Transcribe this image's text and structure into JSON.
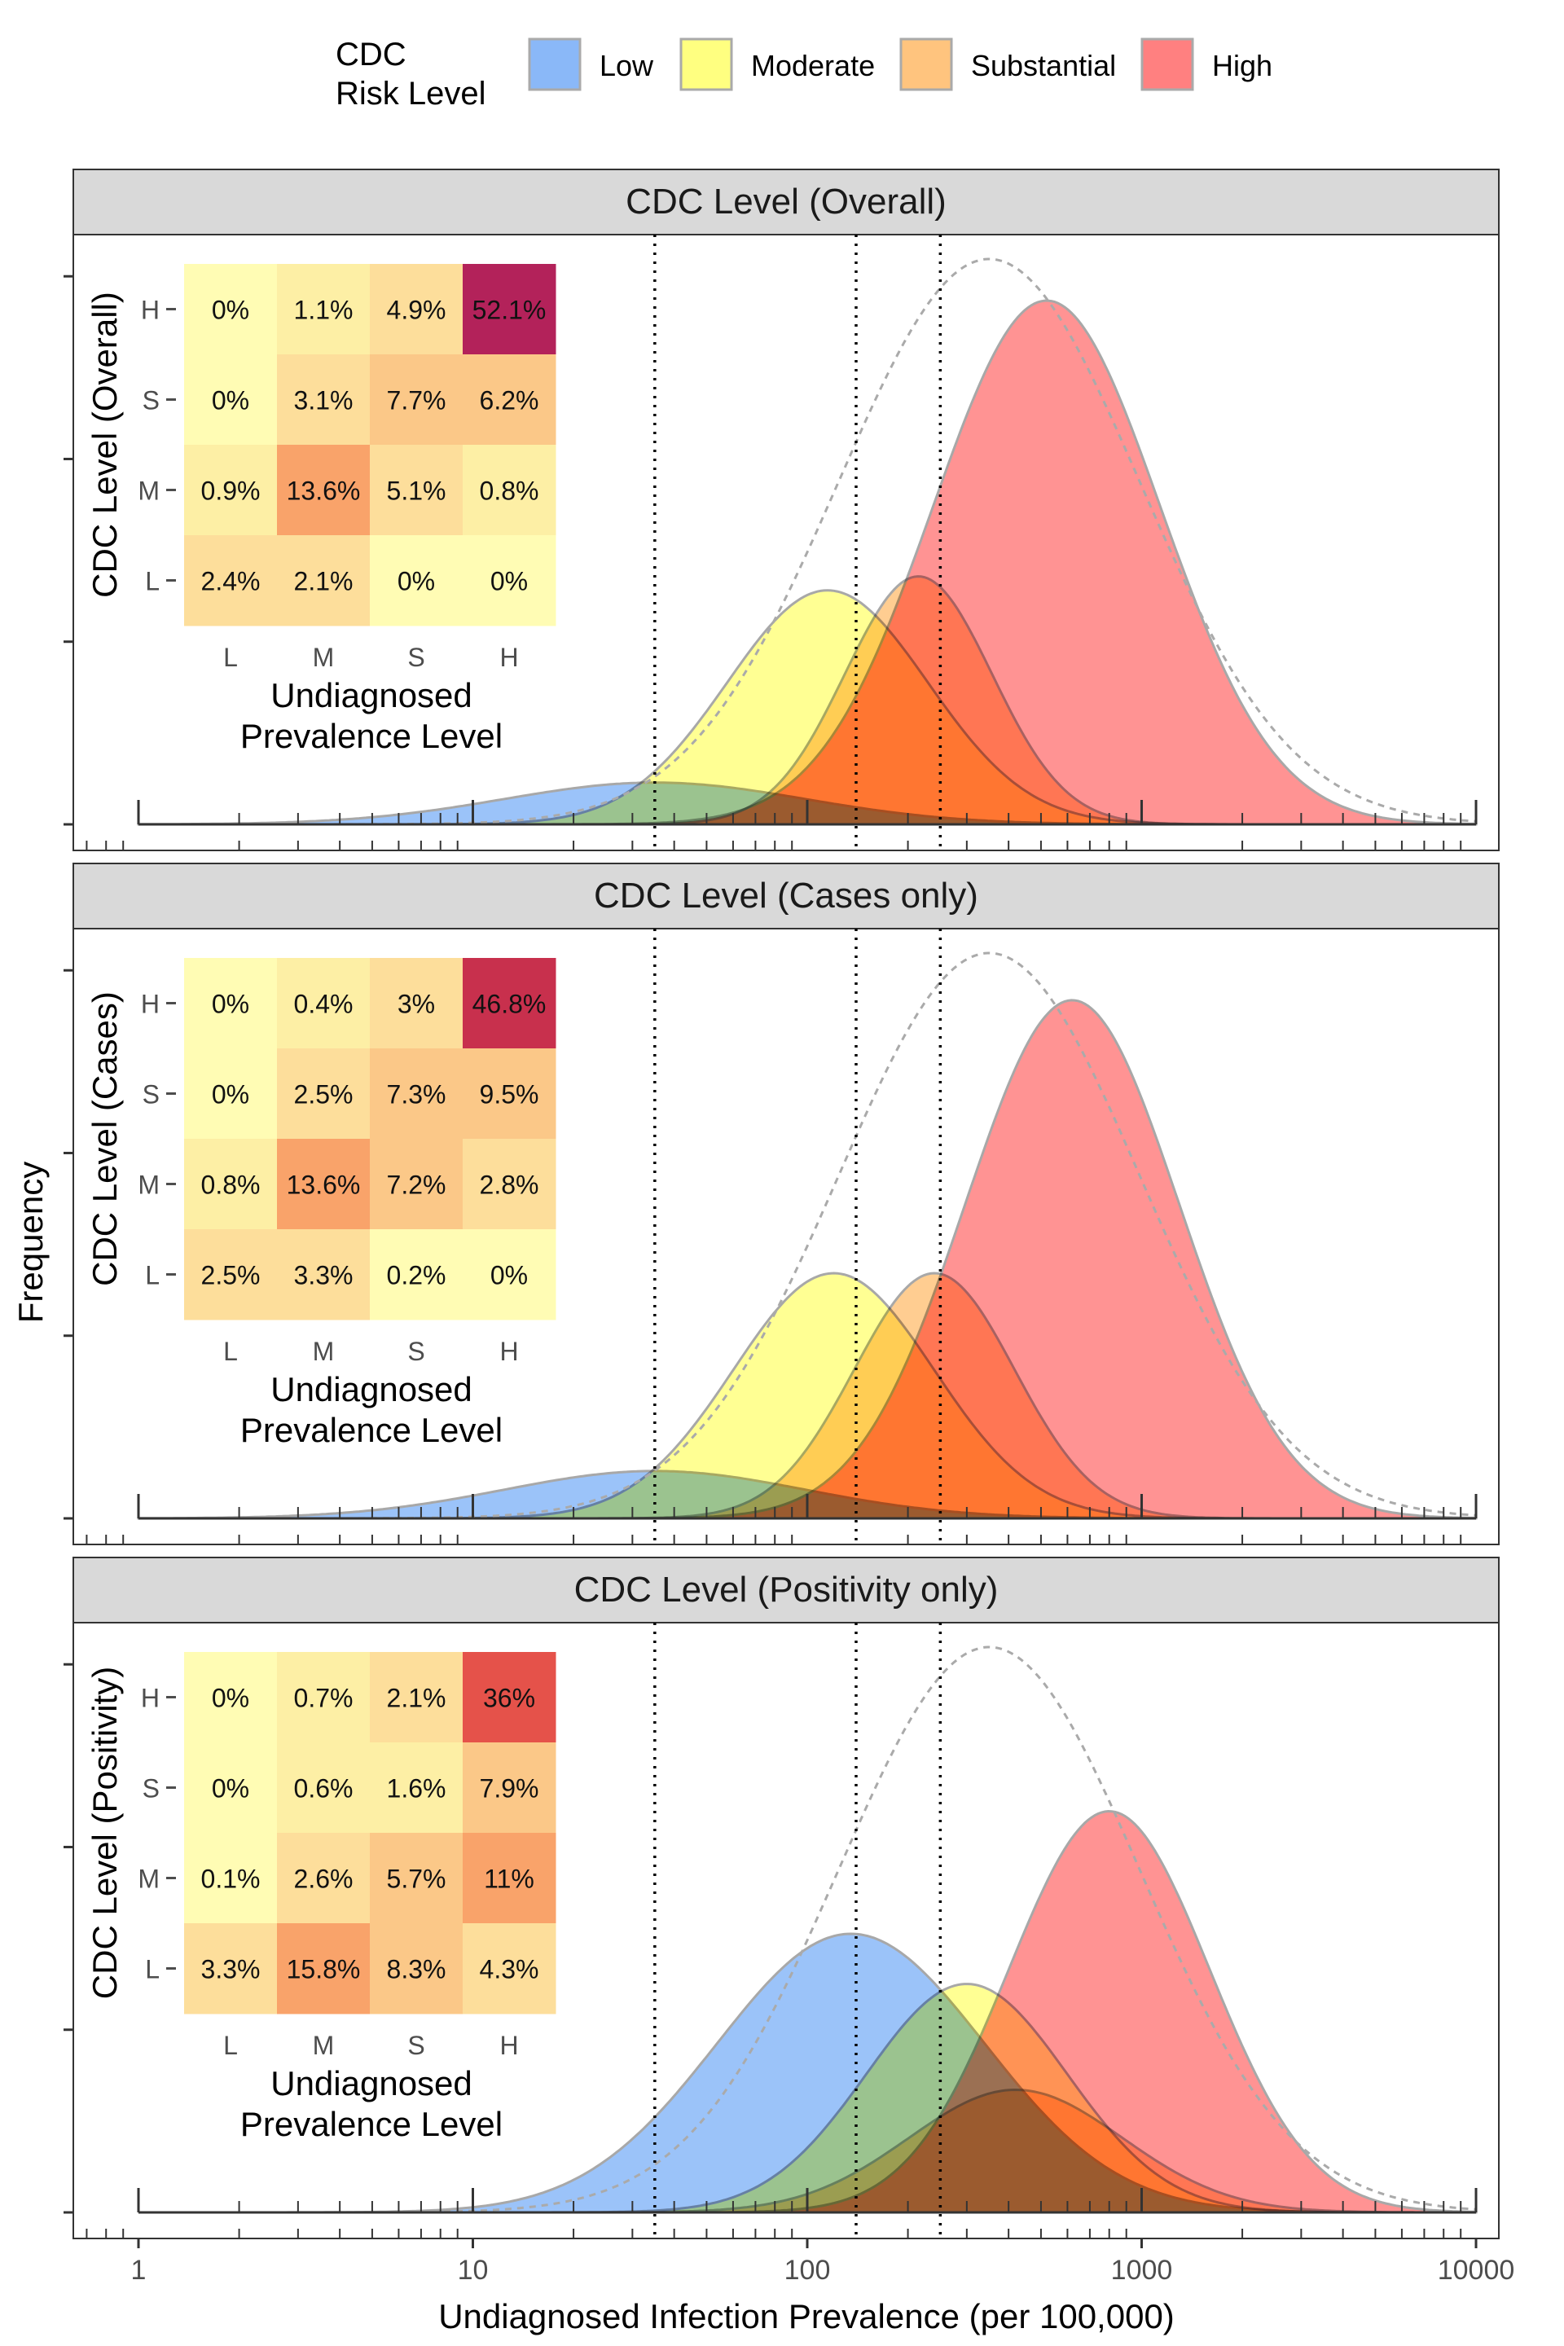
{
  "legend": {
    "title_line1": "CDC",
    "title_line2": "Risk Level",
    "items": [
      {
        "label": "Low",
        "color": "#8ab8f8"
      },
      {
        "label": "Moderate",
        "color": "#ffff80"
      },
      {
        "label": "Substantial",
        "color": "#ffc47e"
      },
      {
        "label": "High",
        "color": "#ff8080"
      }
    ]
  },
  "ylabel": "Frequency",
  "xlabel": "Undiagnosed Infection Prevalence (per 100,000)",
  "x_ticks": [
    "1",
    "10",
    "100",
    "1000",
    "10000"
  ],
  "heatmap_colors": [
    "#fffcb4",
    "#fdefa5",
    "#fdde9b",
    "#fbc888",
    "#f9a36a",
    "#f47b54",
    "#e5524a",
    "#c8304d",
    "#b3225a"
  ],
  "chart_data": [
    {
      "type": "area",
      "title": "CDC Level (Overall)",
      "xscale": "log",
      "xlim": [
        1,
        10000
      ],
      "thresholds": [
        35,
        140,
        250
      ],
      "densities": [
        {
          "level": "Low",
          "mode": 35,
          "width": 0.45,
          "peak": 0.075
        },
        {
          "level": "Moderate",
          "mode": 115,
          "width": 0.3,
          "peak": 0.42
        },
        {
          "level": "Substantial",
          "mode": 215,
          "width": 0.22,
          "peak": 0.445
        },
        {
          "level": "High",
          "mode": 520,
          "width": 0.34,
          "peak": 0.94
        }
      ],
      "inset": {
        "type": "heatmap",
        "ylabel": "CDC Level (Overall)",
        "xlabel_line1": "Undiagnosed",
        "xlabel_line2": "Prevalence Level",
        "x_categories": [
          "L",
          "M",
          "S",
          "H"
        ],
        "y_categories": [
          "H",
          "S",
          "M",
          "L"
        ],
        "cells": [
          [
            "0%",
            "1.1%",
            "4.9%",
            "52.1%"
          ],
          [
            "0%",
            "3.1%",
            "7.7%",
            "6.2%"
          ],
          [
            "0.9%",
            "13.6%",
            "5.1%",
            "0.8%"
          ],
          [
            "2.4%",
            "2.1%",
            "0%",
            "0%"
          ]
        ],
        "values": [
          [
            0,
            1.1,
            4.9,
            52.1
          ],
          [
            0,
            3.1,
            7.7,
            6.2
          ],
          [
            0.9,
            13.6,
            5.1,
            0.8
          ],
          [
            2.4,
            2.1,
            0,
            0
          ]
        ]
      }
    },
    {
      "type": "area",
      "title": "CDC Level (Cases only)",
      "xscale": "log",
      "xlim": [
        1,
        10000
      ],
      "thresholds": [
        35,
        140,
        250
      ],
      "densities": [
        {
          "level": "Low",
          "mode": 35,
          "width": 0.45,
          "peak": 0.085
        },
        {
          "level": "Moderate",
          "mode": 120,
          "width": 0.3,
          "peak": 0.44
        },
        {
          "level": "Substantial",
          "mode": 240,
          "width": 0.24,
          "peak": 0.44
        },
        {
          "level": "High",
          "mode": 620,
          "width": 0.32,
          "peak": 0.93
        }
      ],
      "inset": {
        "type": "heatmap",
        "ylabel": "CDC Level (Cases)",
        "xlabel_line1": "Undiagnosed",
        "xlabel_line2": "Prevalence Level",
        "x_categories": [
          "L",
          "M",
          "S",
          "H"
        ],
        "y_categories": [
          "H",
          "S",
          "M",
          "L"
        ],
        "cells": [
          [
            "0%",
            "0.4%",
            "3%",
            "46.8%"
          ],
          [
            "0%",
            "2.5%",
            "7.3%",
            "9.5%"
          ],
          [
            "0.8%",
            "13.6%",
            "7.2%",
            "2.8%"
          ],
          [
            "2.5%",
            "3.3%",
            "0.2%",
            "0%"
          ]
        ],
        "values": [
          [
            0,
            0.4,
            3,
            46.8
          ],
          [
            0,
            2.5,
            7.3,
            9.5
          ],
          [
            0.8,
            13.6,
            7.2,
            2.8
          ],
          [
            2.5,
            3.3,
            0.2,
            0
          ]
        ]
      }
    },
    {
      "type": "area",
      "title": "CDC Level (Positivity only)",
      "xscale": "log",
      "xlim": [
        1,
        10000
      ],
      "thresholds": [
        35,
        140,
        250
      ],
      "densities": [
        {
          "level": "Low",
          "mode": 135,
          "width": 0.4,
          "peak": 0.5
        },
        {
          "level": "Moderate",
          "mode": 300,
          "width": 0.3,
          "peak": 0.41
        },
        {
          "level": "Substantial",
          "mode": 420,
          "width": 0.32,
          "peak": 0.22
        },
        {
          "level": "High",
          "mode": 800,
          "width": 0.3,
          "peak": 0.72
        }
      ],
      "inset": {
        "type": "heatmap",
        "ylabel": "CDC Level (Positivity)",
        "xlabel_line1": "Undiagnosed",
        "xlabel_line2": "Prevalence Level",
        "x_categories": [
          "L",
          "M",
          "S",
          "H"
        ],
        "y_categories": [
          "H",
          "S",
          "M",
          "L"
        ],
        "cells": [
          [
            "0%",
            "0.7%",
            "2.1%",
            "36%"
          ],
          [
            "0%",
            "0.6%",
            "1.6%",
            "7.9%"
          ],
          [
            "0.1%",
            "2.6%",
            "5.7%",
            "11%"
          ],
          [
            "3.3%",
            "15.8%",
            "8.3%",
            "4.3%"
          ]
        ],
        "values": [
          [
            0,
            0.7,
            2.1,
            36
          ],
          [
            0,
            0.6,
            1.6,
            7.9
          ],
          [
            0.1,
            2.6,
            5.7,
            11
          ],
          [
            3.3,
            15.8,
            8.3,
            4.3
          ]
        ]
      }
    }
  ],
  "total_density": {
    "mode": 350,
    "width": 0.45,
    "peak": 1.0
  }
}
